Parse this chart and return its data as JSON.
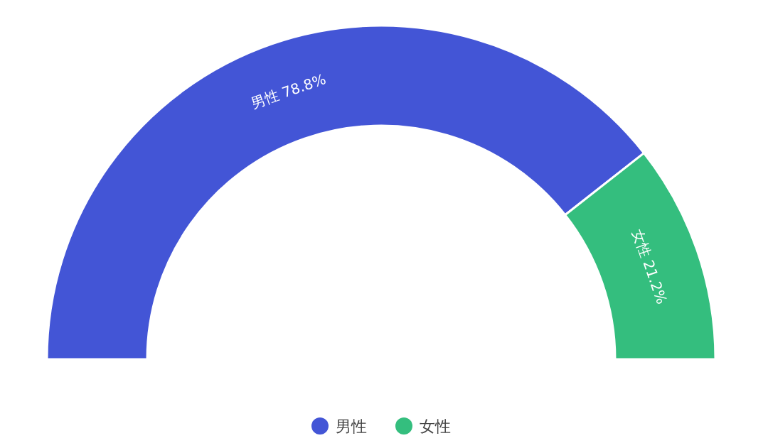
{
  "chart_data": {
    "type": "donut",
    "categories": [
      "男性",
      "女性"
    ],
    "values": [
      78.8,
      21.2
    ],
    "colors": [
      "#4355d6",
      "#34be7e"
    ],
    "value_labels": [
      "男性 78.8%",
      "女性 21.2%"
    ],
    "legend": "bottom"
  }
}
